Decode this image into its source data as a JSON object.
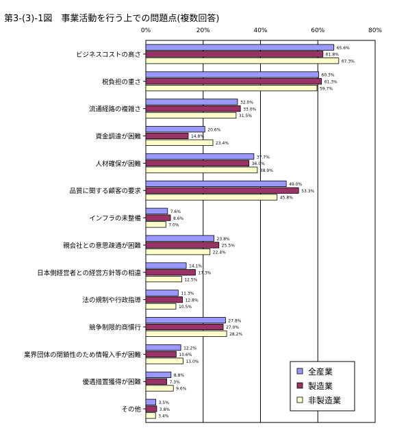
{
  "title": "第3-(3)-1図　事業活動を行う上での問題点(複数回答)",
  "chart_data": {
    "type": "bar",
    "orientation": "horizontal",
    "title": "第3-(3)-1図　事業活動を行う上での問題点(複数回答)",
    "xlim": [
      0,
      80
    ],
    "xticks": [
      "0%",
      "20%",
      "40%",
      "60%",
      "80%"
    ],
    "xtick_values": [
      0,
      20,
      40,
      60,
      80
    ],
    "grid": true,
    "legend_position": "bottom-right",
    "categories": [
      "ビジネスコストの高さ",
      "税負担の重さ",
      "流通経路の複雑さ",
      "資金調達が困難",
      "人材確保が困難",
      "品質に関する顧客の要求",
      "インフラの未整備",
      "親会社との意思疎通が困難",
      "日本側経営者との経営方針等の相違",
      "法の規制や行政指導",
      "競争制限的商慣行",
      "業界団体の閉鎖性のため情報入手が困難",
      "優遇措置獲得が困難",
      "その他"
    ],
    "series": [
      {
        "name": "全産業",
        "color": "#9999ff",
        "values": [
          65.6,
          60.3,
          32.0,
          20.6,
          37.7,
          49.0,
          7.6,
          23.8,
          14.1,
          11.3,
          27.8,
          12.2,
          8.8,
          3.5
        ],
        "labels": [
          "65.6%",
          "60.3%",
          "32.0%",
          "20.6%",
          "37.7%",
          "49.0%",
          "7.6%",
          "23.8%",
          "14.1%",
          "11.3%",
          "27.8%",
          "12.2%",
          "8.8%",
          "3.5%"
        ]
      },
      {
        "name": "製造業",
        "color": "#993366",
        "values": [
          61.8,
          61.3,
          33.0,
          14.8,
          36.0,
          53.3,
          8.6,
          25.5,
          17.3,
          12.8,
          27.0,
          10.6,
          7.3,
          3.8
        ],
        "labels": [
          "61.8%",
          "61.3%",
          "33.0%",
          "14.8%",
          "36.0%",
          "53.3%",
          "8.6%",
          "25.5%",
          "17.3%",
          "12.8%",
          "27.0%",
          "10.6%",
          "7.3%",
          "3.8%"
        ]
      },
      {
        "name": "非製造業",
        "color": "#ffffcc",
        "values": [
          67.3,
          59.7,
          31.5,
          23.4,
          38.9,
          45.8,
          7.0,
          22.4,
          12.5,
          10.5,
          28.2,
          13.0,
          9.6,
          3.4
        ],
        "labels": [
          "67.3%",
          "59.7%",
          "31.5%",
          "23.4%",
          "38.9%",
          "45.8%",
          "7.0%",
          "22.4%",
          "12.5%",
          "10.5%",
          "28.2%",
          "13.0%",
          "9.6%",
          "3.4%"
        ]
      }
    ]
  }
}
